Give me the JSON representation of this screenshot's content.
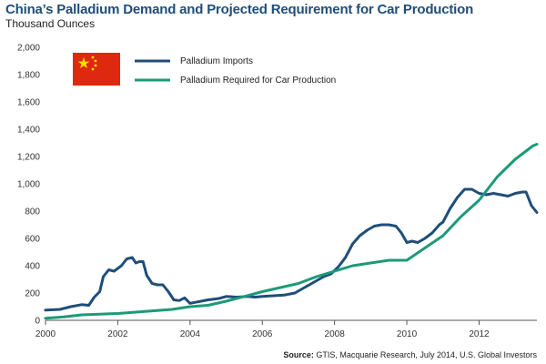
{
  "title": "China’s Palladium Demand and Projected Requirement for Car Production",
  "subtitle": "Thousand Ounces",
  "source_label": "Source:",
  "source_text": " GTIS, Macquarie Research, July 2014, U.S. Global Investors",
  "flag_icon": "china-flag-icon",
  "colors": {
    "imports": "#1f4e79",
    "required": "#1d9a78",
    "flag_red": "#de2910",
    "flag_star": "#ffde00"
  },
  "chart_data": {
    "type": "line",
    "title": "China’s Palladium Demand and Projected Requirement for Car Production",
    "ylabel": "Thousand Ounces",
    "xlim": [
      2000,
      2013.6
    ],
    "ylim": [
      0,
      2000
    ],
    "x_ticks": [
      2000,
      2002,
      2004,
      2006,
      2008,
      2010,
      2012
    ],
    "y_ticks": [
      0,
      200,
      400,
      600,
      800,
      1000,
      1200,
      1400,
      1600,
      1800,
      2000
    ],
    "y_tick_labels": [
      "0",
      "200",
      "400",
      "600",
      "800",
      "1,000",
      "1,200",
      "1,400",
      "1,600",
      "1,800",
      "2,000"
    ],
    "grid": false,
    "legend": "top-left",
    "series": [
      {
        "name": "Palladium Imports",
        "color": "#1f4e79",
        "points": [
          [
            2000.0,
            75
          ],
          [
            2000.4,
            80
          ],
          [
            2000.7,
            100
          ],
          [
            2001.0,
            115
          ],
          [
            2001.2,
            110
          ],
          [
            2001.35,
            170
          ],
          [
            2001.5,
            210
          ],
          [
            2001.6,
            320
          ],
          [
            2001.75,
            370
          ],
          [
            2001.9,
            360
          ],
          [
            2002.1,
            400
          ],
          [
            2002.25,
            450
          ],
          [
            2002.4,
            460
          ],
          [
            2002.5,
            420
          ],
          [
            2002.6,
            430
          ],
          [
            2002.7,
            430
          ],
          [
            2002.8,
            330
          ],
          [
            2002.95,
            270
          ],
          [
            2003.1,
            260
          ],
          [
            2003.25,
            260
          ],
          [
            2003.4,
            210
          ],
          [
            2003.55,
            150
          ],
          [
            2003.7,
            145
          ],
          [
            2003.85,
            165
          ],
          [
            2004.0,
            125
          ],
          [
            2004.2,
            135
          ],
          [
            2004.5,
            150
          ],
          [
            2004.8,
            160
          ],
          [
            2005.0,
            175
          ],
          [
            2005.3,
            170
          ],
          [
            2005.6,
            175
          ],
          [
            2005.8,
            170
          ],
          [
            2006.0,
            175
          ],
          [
            2006.3,
            180
          ],
          [
            2006.6,
            185
          ],
          [
            2006.9,
            200
          ],
          [
            2007.1,
            230
          ],
          [
            2007.3,
            260
          ],
          [
            2007.5,
            290
          ],
          [
            2007.7,
            320
          ],
          [
            2007.9,
            340
          ],
          [
            2008.1,
            390
          ],
          [
            2008.3,
            460
          ],
          [
            2008.5,
            560
          ],
          [
            2008.7,
            620
          ],
          [
            2008.9,
            660
          ],
          [
            2009.1,
            690
          ],
          [
            2009.3,
            700
          ],
          [
            2009.5,
            700
          ],
          [
            2009.7,
            690
          ],
          [
            2009.85,
            640
          ],
          [
            2010.0,
            570
          ],
          [
            2010.15,
            580
          ],
          [
            2010.3,
            570
          ],
          [
            2010.5,
            600
          ],
          [
            2010.7,
            640
          ],
          [
            2010.9,
            700
          ],
          [
            2011.0,
            720
          ],
          [
            2011.2,
            820
          ],
          [
            2011.4,
            900
          ],
          [
            2011.6,
            960
          ],
          [
            2011.8,
            960
          ],
          [
            2012.0,
            930
          ],
          [
            2012.2,
            920
          ],
          [
            2012.4,
            930
          ],
          [
            2012.6,
            920
          ],
          [
            2012.8,
            910
          ],
          [
            2013.0,
            930
          ],
          [
            2013.2,
            940
          ],
          [
            2013.3,
            940
          ],
          [
            2013.45,
            840
          ],
          [
            2013.6,
            790
          ]
        ]
      },
      {
        "name": "Palladium Required for Car Production",
        "color": "#1d9a78",
        "points": [
          [
            2000.0,
            15
          ],
          [
            2000.5,
            25
          ],
          [
            2001.0,
            40
          ],
          [
            2001.5,
            45
          ],
          [
            2002.0,
            50
          ],
          [
            2002.5,
            60
          ],
          [
            2003.0,
            70
          ],
          [
            2003.5,
            80
          ],
          [
            2004.0,
            100
          ],
          [
            2004.5,
            110
          ],
          [
            2005.0,
            140
          ],
          [
            2005.5,
            175
          ],
          [
            2006.0,
            210
          ],
          [
            2006.5,
            240
          ],
          [
            2007.0,
            270
          ],
          [
            2007.5,
            320
          ],
          [
            2008.0,
            360
          ],
          [
            2008.5,
            400
          ],
          [
            2009.0,
            420
          ],
          [
            2009.5,
            440
          ],
          [
            2010.0,
            440
          ],
          [
            2010.5,
            530
          ],
          [
            2011.0,
            620
          ],
          [
            2011.5,
            760
          ],
          [
            2012.0,
            880
          ],
          [
            2012.5,
            1050
          ],
          [
            2013.0,
            1180
          ],
          [
            2013.5,
            1280
          ],
          [
            2013.6,
            1290
          ]
        ]
      }
    ]
  }
}
